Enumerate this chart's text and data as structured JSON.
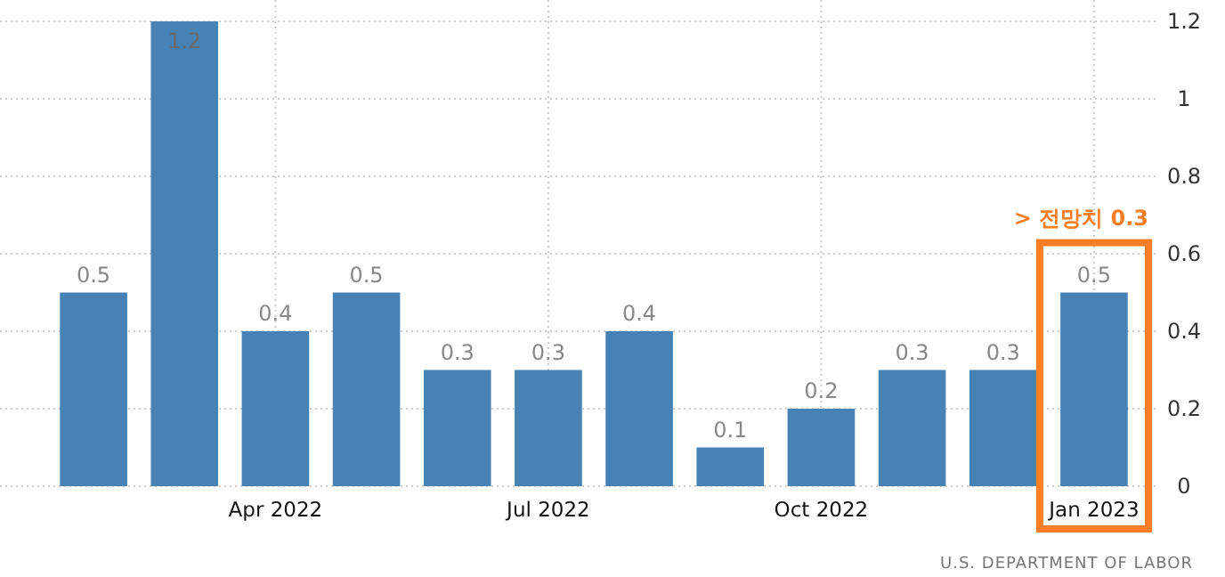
{
  "chart_data": {
    "type": "bar",
    "categories": [
      null,
      null,
      "Apr 2022",
      null,
      null,
      "Jul 2022",
      null,
      null,
      "Oct 2022",
      null,
      null,
      "Jan 2023"
    ],
    "values": [
      0.5,
      1.2,
      0.4,
      0.5,
      0.3,
      0.3,
      0.4,
      0.1,
      0.2,
      0.3,
      0.3,
      0.5
    ],
    "color": "#4682b4",
    "ylim": [
      0,
      1.2
    ],
    "yticks": [
      0,
      0.2,
      0.4,
      0.6,
      0.8,
      1,
      1.2
    ],
    "grid": true,
    "data_labels": true,
    "annotations": [
      "> 전망치 0.3",
      "U.S. DEPARTMENT OF LABOR"
    ]
  }
}
